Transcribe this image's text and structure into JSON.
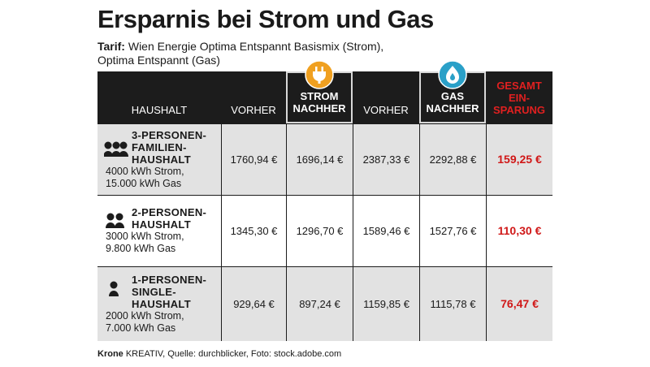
{
  "header": {
    "title": "Ersparnis bei Strom und Gas",
    "subtitle_label": "Tarif:",
    "subtitle_lines": [
      "Wien Energie Optima Entspannt Basismix (Strom),",
      "Optima Entspannt (Gas)"
    ]
  },
  "table": {
    "headers": [
      [
        "HAUSHALT"
      ],
      [
        "VORHER"
      ],
      [
        "STROM",
        "NACHHER"
      ],
      [
        "VORHER"
      ],
      [
        "GAS",
        "NACHHER"
      ],
      [
        "GESAMT",
        "EIN-",
        "SPARUNG"
      ]
    ],
    "rows": [
      {
        "title_lines": [
          "3-PERSONEN-",
          "FAMILIEN-",
          "HAUSHALT"
        ],
        "detail_lines": [
          "4000 kWh Strom,",
          "15.000 kWh Gas"
        ],
        "values": [
          "1760,94 €",
          "1696,14 €",
          "2387,33 €",
          "2292,88 €"
        ],
        "total": "159,25 €"
      },
      {
        "title_lines": [
          "2-PERSONEN-",
          "HAUSHALT"
        ],
        "detail_lines": [
          "3000 kWh Strom,",
          "9.800 kWh Gas"
        ],
        "values": [
          "1345,30 €",
          "1296,70 €",
          "1589,46 €",
          "1527,76 €"
        ],
        "total": "110,30 €"
      },
      {
        "title_lines": [
          "1-PERSONEN-",
          "SINGLE-",
          "HAUSHALT"
        ],
        "detail_lines": [
          "2000 kWh Strom,",
          "7.000 kWh Gas"
        ],
        "values": [
          "929,64 €",
          "897,24 €",
          "1159,85 €",
          "1115,78 €"
        ],
        "total": "76,47 €"
      }
    ]
  },
  "footer": {
    "brand": "Krone",
    "text": "KREATIV, Quelle: durchblicker, Foto: stock.adobe.com"
  }
}
